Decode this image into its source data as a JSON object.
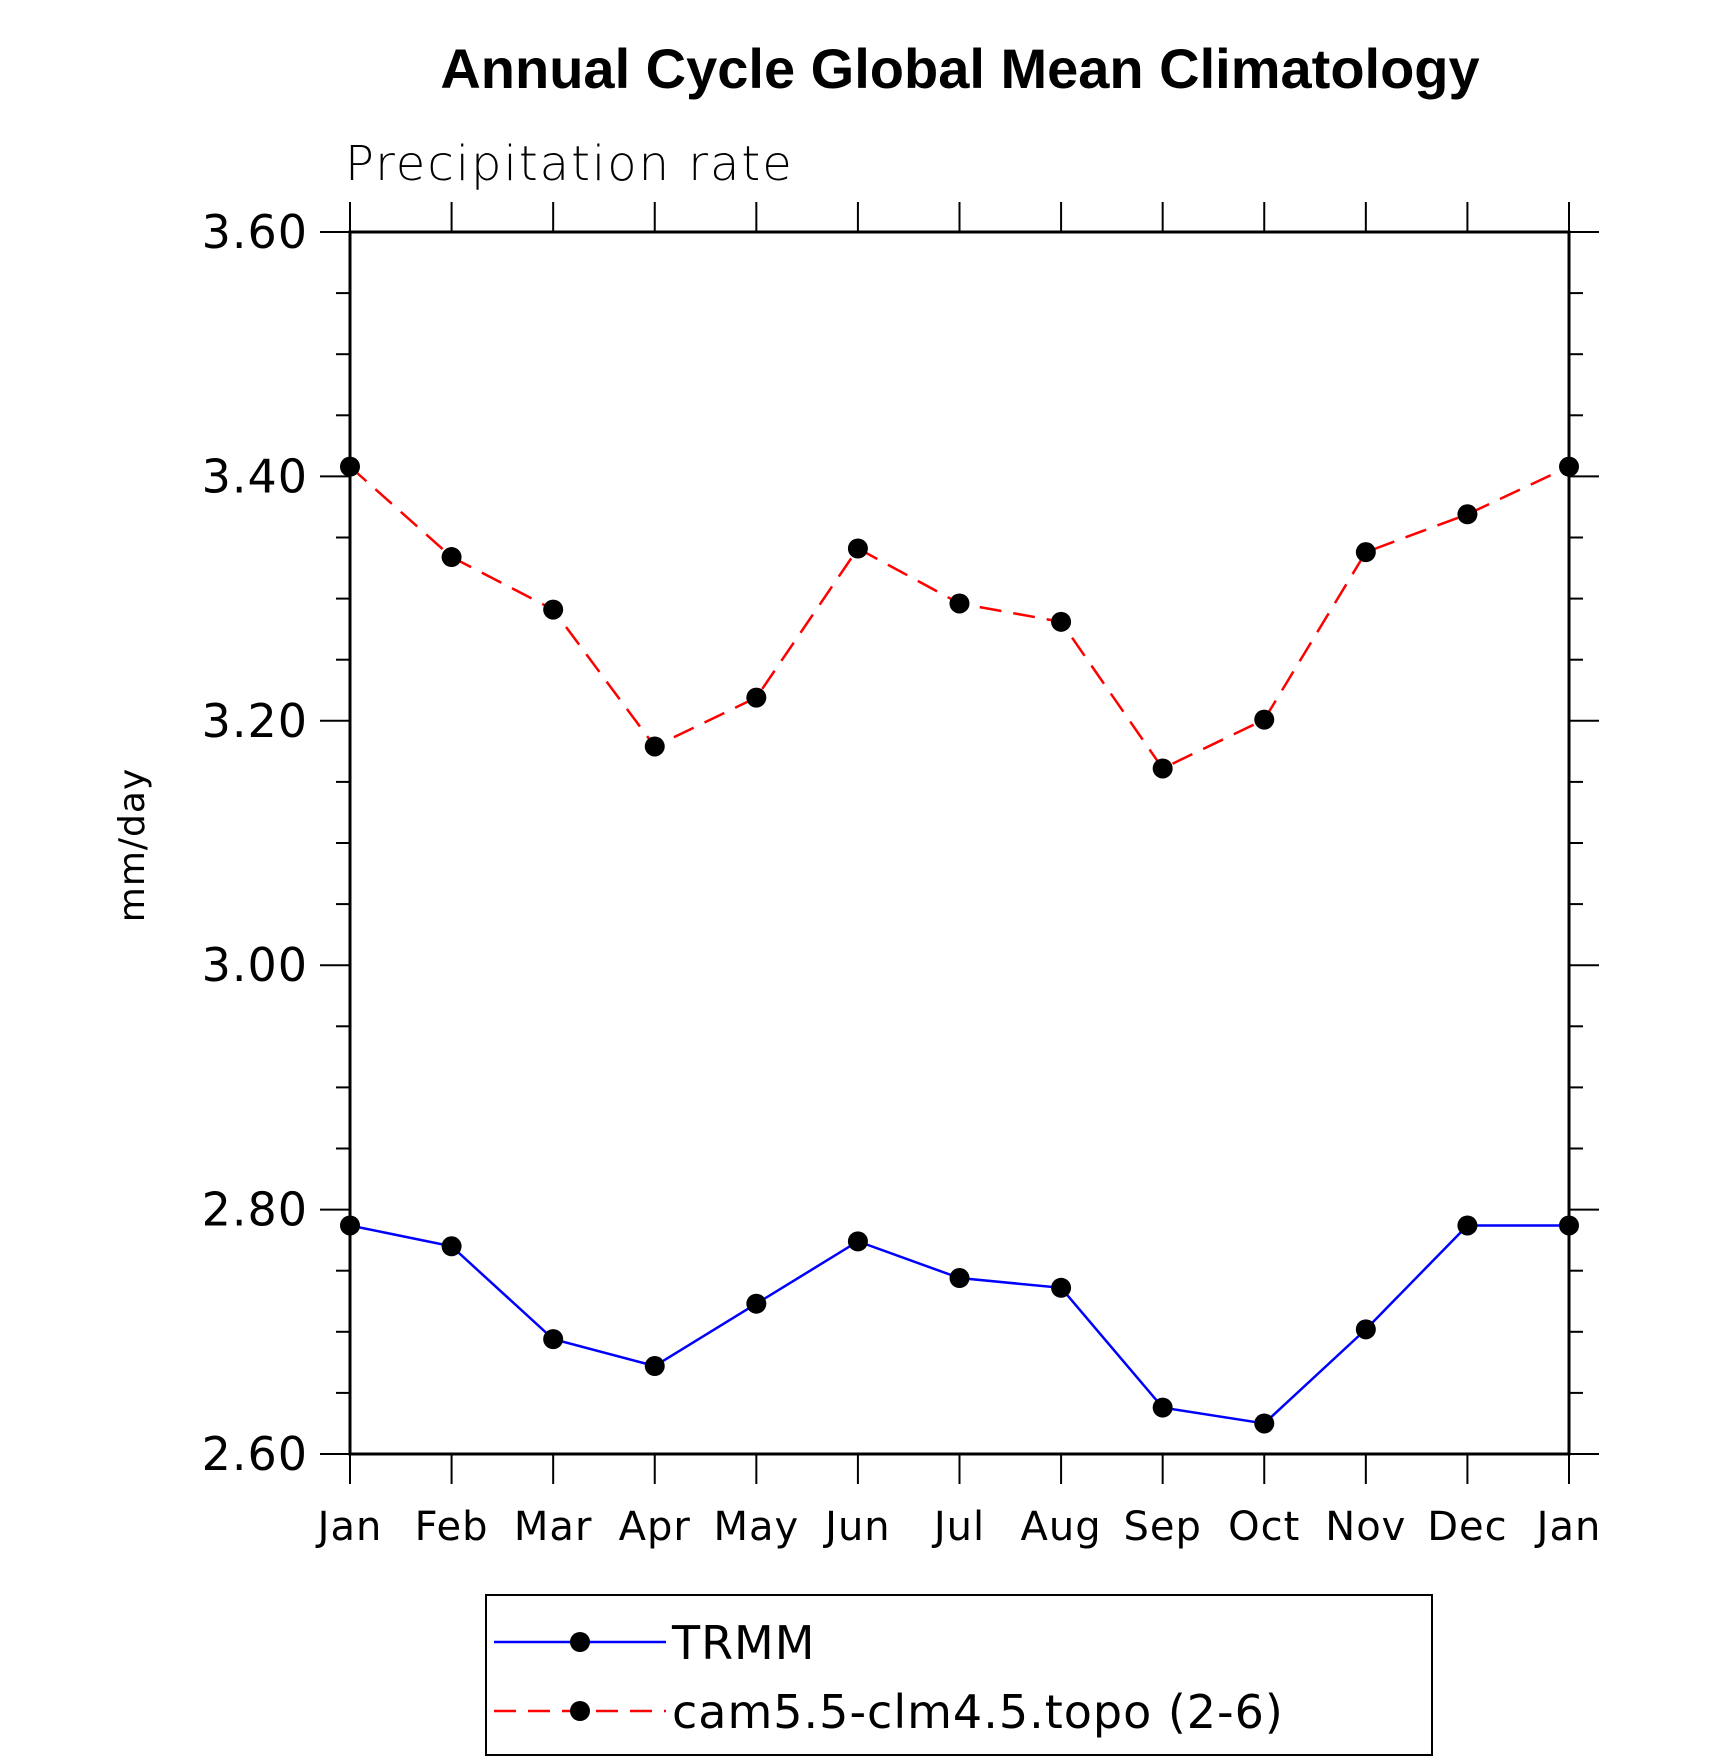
{
  "chart_data": {
    "type": "line",
    "title": "Annual Cycle Global Mean Climatology",
    "subtitle": "Precipitation rate",
    "xlabel": "",
    "ylabel": "mm/day",
    "categories": [
      "Jan",
      "Feb",
      "Mar",
      "Apr",
      "May",
      "Jun",
      "Jul",
      "Aug",
      "Sep",
      "Oct",
      "Nov",
      "Dec",
      "Jan"
    ],
    "ylim": [
      2.6,
      3.6
    ],
    "yticks": [
      "2.60",
      "2.80",
      "3.00",
      "3.20",
      "3.40",
      "3.60"
    ],
    "ytick_values": [
      2.6,
      2.8,
      3.0,
      3.2,
      3.4,
      3.6
    ],
    "grid": false,
    "legend_position": "bottom-center",
    "series": [
      {
        "name": "TRMM",
        "color": "#0000ff",
        "line_style": "solid",
        "marker": "circle",
        "values": [
          2.787,
          2.77,
          2.694,
          2.672,
          2.723,
          2.774,
          2.744,
          2.736,
          2.638,
          2.625,
          2.702,
          2.787,
          2.787
        ]
      },
      {
        "name": "cam5.5-clm4.5.topo (2-6)",
        "color": "#ff0000",
        "line_style": "dashed",
        "marker": "circle",
        "values": [
          3.408,
          3.334,
          3.291,
          3.179,
          3.219,
          3.341,
          3.296,
          3.281,
          3.161,
          3.201,
          3.338,
          3.369,
          3.408
        ]
      }
    ]
  }
}
